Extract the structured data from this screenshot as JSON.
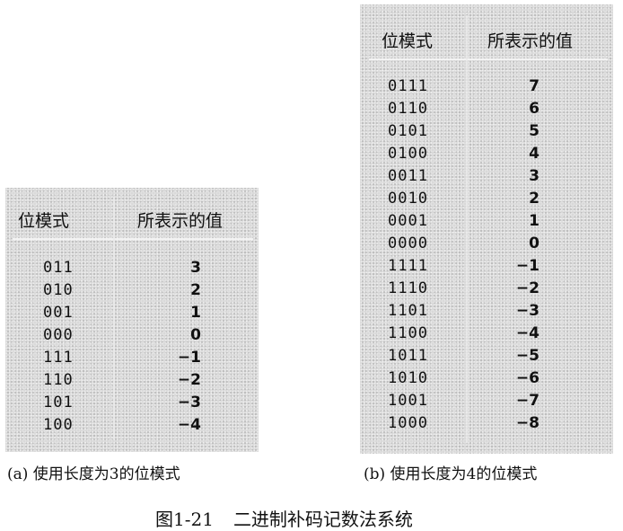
{
  "figure": {
    "number": "图1-21",
    "title": "二进制补码记数法系统"
  },
  "table_a": {
    "caption": "(a)  使用长度为3的位模式",
    "header_pattern": "位模式",
    "header_value": "所表示的值",
    "rows": [
      {
        "pattern": "011",
        "value": "3"
      },
      {
        "pattern": "010",
        "value": "2"
      },
      {
        "pattern": "001",
        "value": "1"
      },
      {
        "pattern": "000",
        "value": "0"
      },
      {
        "pattern": "111",
        "value": "−1"
      },
      {
        "pattern": "110",
        "value": "−2"
      },
      {
        "pattern": "101",
        "value": "−3"
      },
      {
        "pattern": "100",
        "value": "−4"
      }
    ]
  },
  "table_b": {
    "caption": "(b)  使用长度为4的位模式",
    "header_pattern": "位模式",
    "header_value": "所表示的值",
    "rows": [
      {
        "pattern": "0111",
        "value": "7"
      },
      {
        "pattern": "0110",
        "value": "6"
      },
      {
        "pattern": "0101",
        "value": "5"
      },
      {
        "pattern": "0100",
        "value": "4"
      },
      {
        "pattern": "0011",
        "value": "3"
      },
      {
        "pattern": "0010",
        "value": "2"
      },
      {
        "pattern": "0001",
        "value": "1"
      },
      {
        "pattern": "0000",
        "value": "0"
      },
      {
        "pattern": "1111",
        "value": "−1"
      },
      {
        "pattern": "1110",
        "value": "−2"
      },
      {
        "pattern": "1101",
        "value": "−3"
      },
      {
        "pattern": "1100",
        "value": "−4"
      },
      {
        "pattern": "1011",
        "value": "−5"
      },
      {
        "pattern": "1010",
        "value": "−6"
      },
      {
        "pattern": "1001",
        "value": "−7"
      },
      {
        "pattern": "1000",
        "value": "−8"
      }
    ]
  }
}
